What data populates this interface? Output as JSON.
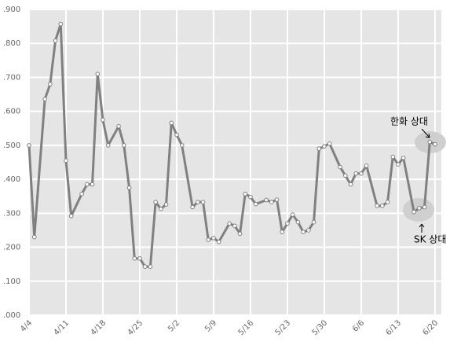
{
  "chart_data": {
    "type": "line",
    "x": [
      0,
      1,
      3,
      4,
      5,
      6,
      7,
      8,
      10,
      11,
      12,
      13,
      14,
      15,
      17,
      18,
      19,
      20,
      21,
      22,
      23,
      24,
      25,
      26,
      27,
      28,
      29,
      31,
      32,
      33,
      34,
      35,
      36,
      38,
      39,
      40,
      41,
      42,
      43,
      45,
      46,
      47,
      48,
      49,
      50,
      51,
      52,
      53,
      54,
      55,
      56,
      57,
      59,
      60,
      61,
      62,
      63,
      64,
      66,
      67,
      68,
      69,
      70,
      71,
      73,
      74,
      75,
      76,
      77
    ],
    "series": [
      {
        "color": "#808080",
        "values": [
          0.5,
          0.23,
          0.636,
          0.68,
          0.808,
          0.857,
          0.455,
          0.292,
          0.357,
          0.385,
          0.385,
          0.71,
          0.575,
          0.5,
          0.556,
          0.5,
          0.375,
          0.167,
          0.167,
          0.143,
          0.143,
          0.333,
          0.313,
          0.326,
          0.566,
          0.531,
          0.5,
          0.318,
          0.333,
          0.333,
          0.222,
          0.227,
          0.216,
          0.27,
          0.263,
          0.24,
          0.357,
          0.348,
          0.327,
          0.339,
          0.333,
          0.34,
          0.245,
          0.27,
          0.296,
          0.274,
          0.245,
          0.25,
          0.274,
          0.49,
          0.497,
          0.505,
          0.436,
          0.411,
          0.385,
          0.417,
          0.417,
          0.44,
          0.322,
          0.322,
          0.333,
          0.466,
          0.444,
          0.463,
          0.304,
          0.315,
          0.318,
          0.51,
          0.503
        ]
      }
    ],
    "xlim": [
      0,
      78.2
    ],
    "xticks": [
      {
        "value": 0,
        "label": "4/4"
      },
      {
        "value": 7,
        "label": "4/11"
      },
      {
        "value": 14,
        "label": "4/18"
      },
      {
        "value": 21,
        "label": "4/25"
      },
      {
        "value": 28,
        "label": "5/2"
      },
      {
        "value": 35,
        "label": "5/9"
      },
      {
        "value": 42,
        "label": "5/16"
      },
      {
        "value": 49,
        "label": "5/23"
      },
      {
        "value": 56,
        "label": "5/30"
      },
      {
        "value": 63,
        "label": "6/6"
      },
      {
        "value": 70,
        "label": "6/13"
      },
      {
        "value": 77,
        "label": "6/20"
      }
    ],
    "ylim": [
      0,
      0.9
    ],
    "yticks": [
      {
        "value": 0,
        "label": ".000"
      },
      {
        "value": 0.1,
        "label": ".100"
      },
      {
        "value": 0.2,
        "label": ".200"
      },
      {
        "value": 0.3,
        "label": ".300"
      },
      {
        "value": 0.4,
        "label": ".400"
      },
      {
        "value": 0.5,
        "label": ".500"
      },
      {
        "value": 0.6,
        "label": ".600"
      },
      {
        "value": 0.7,
        "label": ".700"
      },
      {
        "value": 0.8,
        "label": ".800"
      },
      {
        "value": 0.9,
        "label": ".900"
      }
    ],
    "grid": true,
    "annotations": [
      "한화 상대",
      "SK 상대"
    ]
  }
}
